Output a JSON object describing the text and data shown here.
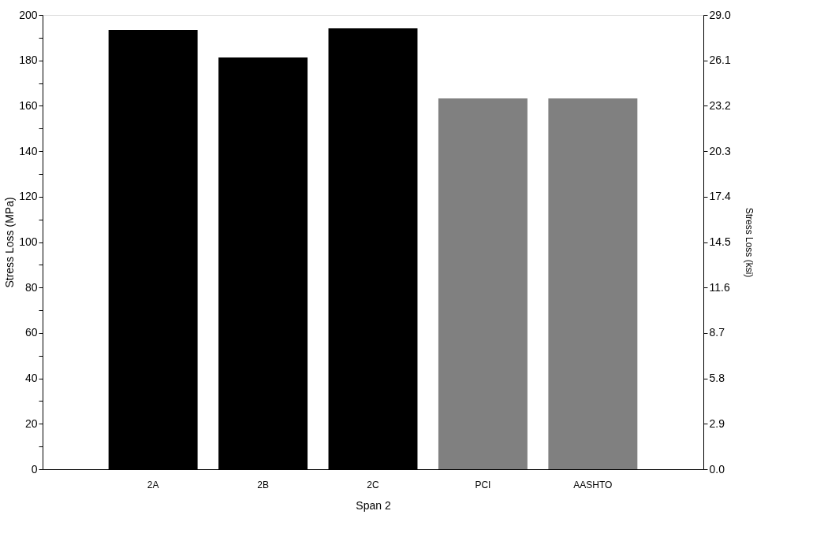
{
  "chart_data": {
    "type": "bar",
    "xlabel": "Span 2",
    "ylabel": "Stress Loss (MPa)",
    "y2label": "Stress Loss (ksi)",
    "categories": [
      "2A",
      "2B",
      "2C",
      "PCI",
      "AASHTO"
    ],
    "values": [
      193.4,
      181.3,
      194.1,
      163.3,
      163.3
    ],
    "colors": [
      "#000000",
      "#000000",
      "#000000",
      "#808080",
      "#808080"
    ],
    "ylim": [
      0,
      200
    ],
    "yticks": [
      0,
      {
        "value": 10,
        "label": null
      },
      20,
      {
        "value": 30,
        "label": null
      },
      40,
      {
        "value": 50,
        "label": null
      },
      60,
      {
        "value": 70,
        "label": null
      },
      80,
      {
        "value": 90,
        "label": null
      },
      100,
      {
        "value": 110,
        "label": null
      },
      120,
      {
        "value": 130,
        "label": null
      },
      140,
      {
        "value": 150,
        "label": null
      },
      160,
      {
        "value": 170,
        "label": null
      },
      180,
      {
        "value": 190,
        "label": null
      },
      200
    ],
    "y2lim": [
      0,
      29
    ],
    "y2ticks": [
      {
        "value": 0,
        "label": "0.0"
      },
      2.9,
      5.8,
      8.7,
      11.6,
      14.5,
      17.4,
      20.3,
      23.2,
      26.1,
      {
        "value": 29,
        "label": "29.0"
      }
    ],
    "grid": false,
    "legend": false
  }
}
